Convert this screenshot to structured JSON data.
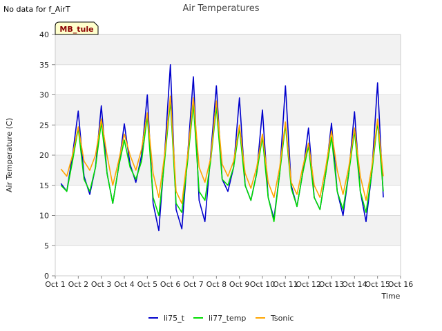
{
  "header": {
    "no_data_note": "No data for f_AirT"
  },
  "site_label": "MB_tule",
  "colors": {
    "li75_t": "#0000cc",
    "li77_temp": "#00dd00",
    "Tsonic": "#ffa500",
    "band": "#f2f2f2",
    "grid": "#dddddd",
    "site_bg": "#ffffcc"
  },
  "chart_data": {
    "type": "line",
    "title": "Air Temperatures",
    "xlabel": "Time",
    "ylabel": "Air Temperature (C)",
    "xlim": [
      1,
      16
    ],
    "ylim": [
      0,
      40
    ],
    "x_ticks": [
      1,
      2,
      3,
      4,
      5,
      6,
      7,
      8,
      9,
      10,
      11,
      12,
      13,
      14,
      15,
      16
    ],
    "x_tick_labels": [
      "Oct 1",
      "Oct 2",
      "Oct 3",
      "Oct 4",
      "Oct 5",
      "Oct 6",
      "Oct 7",
      "Oct 8",
      "Oct 9",
      "Oct 10",
      "Oct 11",
      "Oct 12",
      "Oct 13",
      "Oct 14",
      "Oct 15",
      "Oct 16"
    ],
    "y_ticks": [
      0,
      5,
      10,
      15,
      20,
      25,
      30,
      35,
      40
    ],
    "grid": true,
    "legend_position": "bottom",
    "series": [
      {
        "name": "li75_t",
        "x": [
          1.25,
          1.5,
          1.75,
          2.0,
          2.25,
          2.5,
          2.75,
          3.0,
          3.25,
          3.5,
          3.75,
          4.0,
          4.25,
          4.5,
          4.75,
          5.0,
          5.25,
          5.5,
          5.75,
          6.0,
          6.25,
          6.5,
          6.75,
          7.0,
          7.25,
          7.5,
          7.75,
          8.0,
          8.25,
          8.5,
          8.75,
          9.0,
          9.25,
          9.5,
          9.75,
          10.0,
          10.25,
          10.5,
          10.75,
          11.0,
          11.25,
          11.5,
          11.75,
          12.0,
          12.25,
          12.5,
          12.75,
          13.0,
          13.25,
          13.5,
          13.75,
          14.0,
          14.25,
          14.5,
          14.75,
          15.0,
          15.25
        ],
        "values": [
          15.3,
          14.0,
          20.0,
          27.3,
          16.5,
          13.5,
          18.0,
          28.2,
          17.0,
          12.0,
          18.0,
          25.2,
          18.5,
          15.5,
          20.0,
          30.0,
          12.0,
          7.5,
          20.0,
          35.0,
          11.0,
          7.8,
          20.0,
          33.0,
          12.5,
          9.0,
          20.0,
          31.5,
          16.0,
          14.0,
          18.0,
          29.5,
          15.0,
          12.5,
          17.0,
          27.5,
          13.0,
          9.5,
          17.0,
          31.5,
          15.0,
          11.5,
          17.0,
          24.5,
          13.0,
          11.0,
          17.0,
          25.3,
          14.0,
          10.0,
          17.0,
          27.2,
          14.0,
          9.0,
          17.0,
          32.0,
          13.0
        ]
      },
      {
        "name": "li77_temp",
        "x": [
          1.25,
          1.5,
          1.75,
          2.0,
          2.25,
          2.5,
          2.75,
          3.0,
          3.25,
          3.5,
          3.75,
          4.0,
          4.25,
          4.5,
          4.75,
          5.0,
          5.25,
          5.5,
          5.75,
          6.0,
          6.25,
          6.5,
          6.75,
          7.0,
          7.25,
          7.5,
          7.75,
          8.0,
          8.25,
          8.5,
          8.75,
          9.0,
          9.25,
          9.5,
          9.75,
          10.0,
          10.25,
          10.5,
          10.75,
          11.0,
          11.25,
          11.5,
          11.75,
          12.0,
          12.25,
          12.5,
          12.75,
          13.0,
          13.25,
          13.5,
          13.75,
          14.0,
          14.25,
          14.5,
          14.75,
          15.0,
          15.25
        ],
        "values": [
          15.0,
          14.0,
          19.0,
          24.5,
          16.0,
          14.0,
          18.0,
          25.5,
          17.0,
          12.0,
          18.0,
          22.5,
          18.0,
          16.0,
          19.0,
          26.5,
          13.0,
          10.0,
          19.0,
          29.0,
          12.0,
          10.5,
          19.0,
          28.5,
          14.0,
          12.5,
          19.0,
          28.0,
          16.0,
          15.0,
          18.0,
          24.5,
          15.0,
          12.5,
          17.0,
          23.0,
          13.0,
          9.0,
          17.0,
          25.0,
          14.5,
          11.5,
          17.0,
          21.5,
          13.0,
          11.0,
          17.0,
          23.0,
          14.0,
          11.0,
          17.0,
          24.0,
          14.0,
          10.5,
          17.0,
          25.5,
          14.0
        ]
      },
      {
        "name": "Tsonic",
        "x": [
          1.25,
          1.5,
          1.75,
          2.0,
          2.25,
          2.5,
          2.75,
          3.0,
          3.25,
          3.5,
          3.75,
          4.0,
          4.25,
          4.5,
          4.75,
          5.0,
          5.25,
          5.5,
          5.75,
          6.0,
          6.25,
          6.5,
          6.75,
          7.0,
          7.25,
          7.5,
          7.75,
          8.0,
          8.25,
          8.5,
          8.75,
          9.0,
          9.25,
          9.5,
          9.75,
          10.0,
          10.25,
          10.5,
          10.75,
          11.0,
          11.25,
          11.5,
          11.75,
          12.0,
          12.25,
          12.5,
          12.75,
          13.0,
          13.25,
          13.5,
          13.75,
          14.0,
          14.25,
          14.5,
          14.75,
          15.0,
          15.25
        ],
        "values": [
          17.7,
          16.5,
          20.0,
          24.7,
          19.0,
          17.5,
          20.0,
          26.0,
          20.0,
          15.0,
          19.0,
          23.5,
          20.0,
          17.5,
          21.0,
          27.0,
          17.0,
          13.0,
          20.0,
          29.8,
          14.0,
          12.0,
          20.0,
          29.5,
          18.0,
          15.5,
          19.5,
          29.0,
          18.5,
          16.5,
          19.0,
          25.0,
          17.0,
          14.5,
          18.0,
          23.5,
          15.5,
          13.0,
          18.0,
          25.5,
          15.5,
          13.5,
          18.0,
          22.0,
          15.0,
          13.0,
          18.0,
          24.0,
          17.5,
          13.5,
          18.0,
          24.5,
          16.5,
          12.5,
          18.0,
          26.0,
          16.5
        ]
      }
    ]
  }
}
